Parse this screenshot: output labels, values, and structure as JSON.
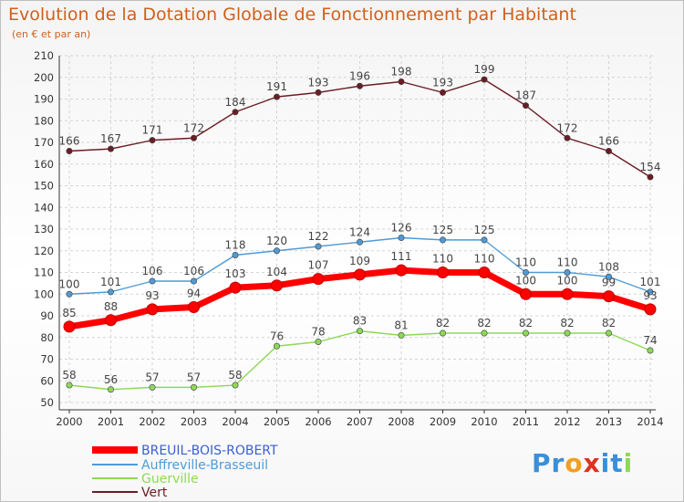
{
  "chart_data": {
    "type": "line",
    "title": "Evolution de la Dotation Globale de Fonctionnement par Habitant",
    "subtitle": "(en € et par an)",
    "x": [
      "2000",
      "2001",
      "2002",
      "2003",
      "2004",
      "2005",
      "2006",
      "2007",
      "2008",
      "2009",
      "2010",
      "2011",
      "2012",
      "2013",
      "2014"
    ],
    "ylim": [
      50,
      210
    ],
    "yticks": [
      50,
      60,
      70,
      80,
      90,
      100,
      110,
      120,
      130,
      140,
      150,
      160,
      170,
      180,
      190,
      200,
      210
    ],
    "grid": true,
    "legend": "bottom-left",
    "series": [
      {
        "name": "BREUIL-BOIS-ROBERT",
        "color": "#ff0000",
        "values": [
          85,
          88,
          93,
          94,
          103,
          104,
          107,
          109,
          111,
          110,
          110,
          100,
          100,
          99,
          93
        ]
      },
      {
        "name": "Auffreville-Brasseuil",
        "color": "#4f9bd6",
        "values": [
          100,
          101,
          106,
          106,
          118,
          120,
          122,
          124,
          126,
          125,
          125,
          110,
          110,
          108,
          101
        ]
      },
      {
        "name": "Guerville",
        "color": "#8ed858",
        "values": [
          58,
          56,
          57,
          57,
          58,
          76,
          78,
          83,
          81,
          82,
          82,
          82,
          82,
          82,
          74
        ]
      },
      {
        "name": "Vert",
        "color": "#6b1c24",
        "values": [
          166,
          167,
          171,
          172,
          184,
          191,
          193,
          196,
          198,
          193,
          199,
          187,
          172,
          166,
          154
        ]
      }
    ]
  },
  "branding": {
    "logo_text": "Proxiti",
    "letters": [
      {
        "ch": "P",
        "color": "#3a8fd8"
      },
      {
        "ch": "r",
        "color": "#3a8fd8"
      },
      {
        "ch": "o",
        "color": "#f0a020"
      },
      {
        "ch": "x",
        "color": "#e03020"
      },
      {
        "ch": "i",
        "color": "#3a8fd8"
      },
      {
        "ch": "t",
        "color": "#3a8fd8"
      },
      {
        "ch": "i",
        "color": "#8ed858"
      }
    ]
  }
}
